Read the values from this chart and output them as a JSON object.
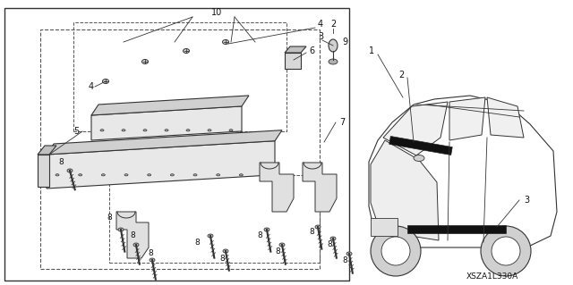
{
  "bg_color": "#ffffff",
  "border_color": "#555555",
  "dashed_color": "#555555",
  "line_color": "#333333",
  "text_color": "#111111",
  "diagram_label": "XSZA1L330A",
  "fig_width": 6.4,
  "fig_height": 3.19
}
